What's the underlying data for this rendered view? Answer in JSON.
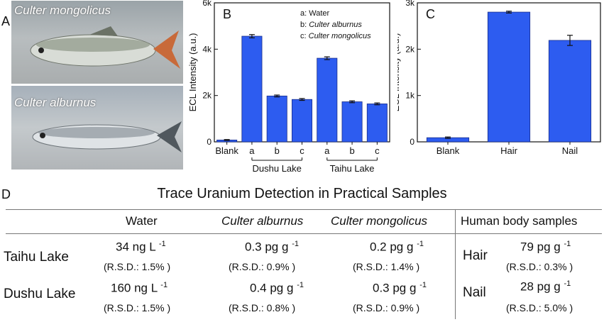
{
  "panel_a": {
    "label": "A",
    "photos": [
      {
        "caption": "Culter mongolicus"
      },
      {
        "caption": "Culter alburnus"
      }
    ]
  },
  "chart_data": [
    {
      "type": "bar",
      "panel_label": "B",
      "ylabel": "ECL Intensity (a.u.)",
      "ylim": [
        0,
        6000
      ],
      "yticks": [
        "0",
        "2k",
        "4k",
        "6k"
      ],
      "ytick_values": [
        0,
        2000,
        4000,
        6000
      ],
      "categories": [
        "Blank",
        "a",
        "b",
        "c",
        "a",
        "b",
        "c"
      ],
      "values": [
        80,
        4560,
        1980,
        1830,
        3610,
        1730,
        1640
      ],
      "errors": [
        20,
        70,
        40,
        40,
        60,
        40,
        40
      ],
      "groups": [
        {
          "label": "Dushu Lake",
          "from": 1,
          "to": 3
        },
        {
          "label": "Taihu Lake",
          "from": 4,
          "to": 6
        }
      ],
      "legend": [
        "a: Water",
        "b: Culter alburnus",
        "c: Culter mongolicus"
      ],
      "bar_color": "#2d5cf0"
    },
    {
      "type": "bar",
      "panel_label": "C",
      "ylabel": "ECL Intensity (a.u.)",
      "ylim": [
        0,
        3000
      ],
      "yticks": [
        "0",
        "1k",
        "2k",
        "3k"
      ],
      "ytick_values": [
        0,
        1000,
        2000,
        3000
      ],
      "categories": [
        "Blank",
        "Hair",
        "Nail"
      ],
      "values": [
        90,
        2800,
        2190
      ],
      "errors": [
        15,
        20,
        110
      ],
      "bar_color": "#2d5cf0"
    }
  ],
  "table": {
    "panel_label": "D",
    "title": "Trace Uranium Detection in Practical Samples",
    "headers": {
      "water": "Water",
      "alburnus": "Culter alburnus",
      "mongolicus": "Culter mongolicus",
      "human": "Human body samples"
    },
    "rows": [
      {
        "lake": "Taihu Lake",
        "water": "34 ng L",
        "water_sup": "-1",
        "water_rsd": "(R.S.D.: 1.5% )",
        "alburnus": "0.3 pg g",
        "alburnus_sup": "-1",
        "alburnus_rsd": "(R.S.D.: 0.9% )",
        "mongolicus": "0.2 pg g",
        "mongolicus_sup": "-1",
        "mongolicus_rsd": "(R.S.D.: 1.4% )",
        "human_label": "Hair",
        "human": "79 pg g",
        "human_sup": "-1",
        "human_rsd": "(R.S.D.: 0.3% )"
      },
      {
        "lake": "Dushu Lake",
        "water": "160 ng L",
        "water_sup": "-1",
        "water_rsd": "(R.S.D.: 1.5% )",
        "alburnus": "0.4 pg g",
        "alburnus_sup": "-1",
        "alburnus_rsd": "(R.S.D.: 0.8% )",
        "mongolicus": "0.3 pg g",
        "mongolicus_sup": "-1",
        "mongolicus_rsd": "(R.S.D.: 0.9% )",
        "human_label": "Nail",
        "human": "28 pg g",
        "human_sup": "-1",
        "human_rsd": "(R.S.D.: 5.0% )"
      }
    ]
  }
}
